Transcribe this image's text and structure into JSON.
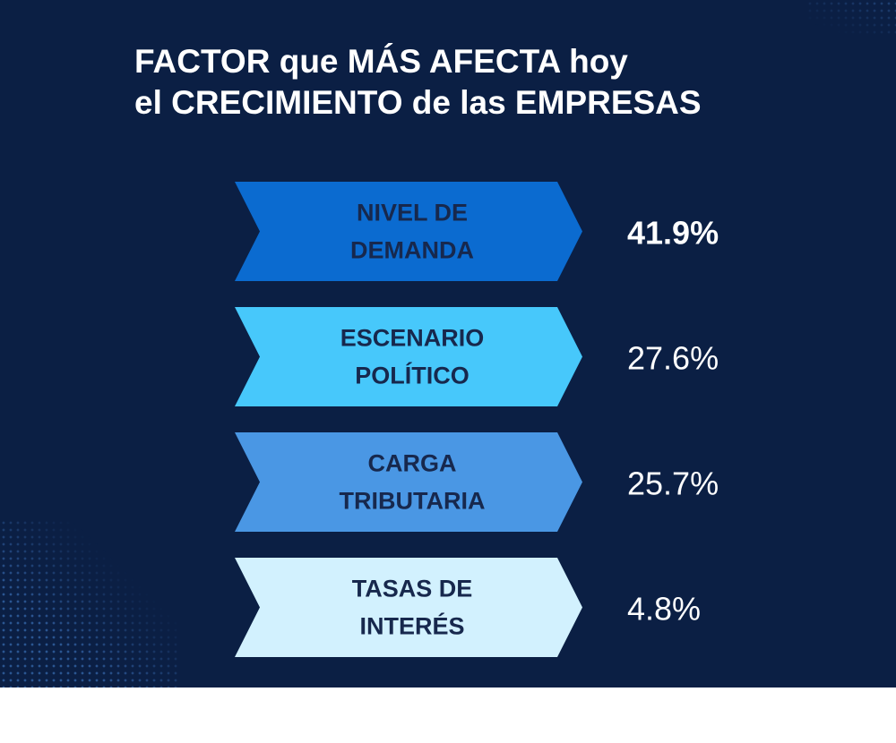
{
  "chart_data": {
    "type": "bar",
    "title_lines": [
      "FACTOR que MÁS AFECTA hoy",
      "el CRECIMIENTO de las EMPRESAS"
    ],
    "categories": [
      [
        "NIVEL DE",
        "DEMANDA"
      ],
      [
        "ESCENARIO",
        "POLÍTICO"
      ],
      [
        "CARGA",
        "TRIBUTARIA"
      ],
      [
        "TASAS DE",
        "INTERÉS"
      ]
    ],
    "values": [
      41.9,
      27.6,
      25.7,
      4.8
    ],
    "value_labels": [
      "41.9%",
      "27.6%",
      "25.7%",
      "4.8%"
    ],
    "bar_colors": [
      "#0b6bd0",
      "#47c8fb",
      "#4a97e4",
      "#d2f1fe"
    ],
    "highlight_index": 0,
    "grid": false,
    "legend": "none"
  },
  "colors": {
    "background": "#0b1f44",
    "label_text": "#17284d",
    "value_text": "#ffffff"
  }
}
